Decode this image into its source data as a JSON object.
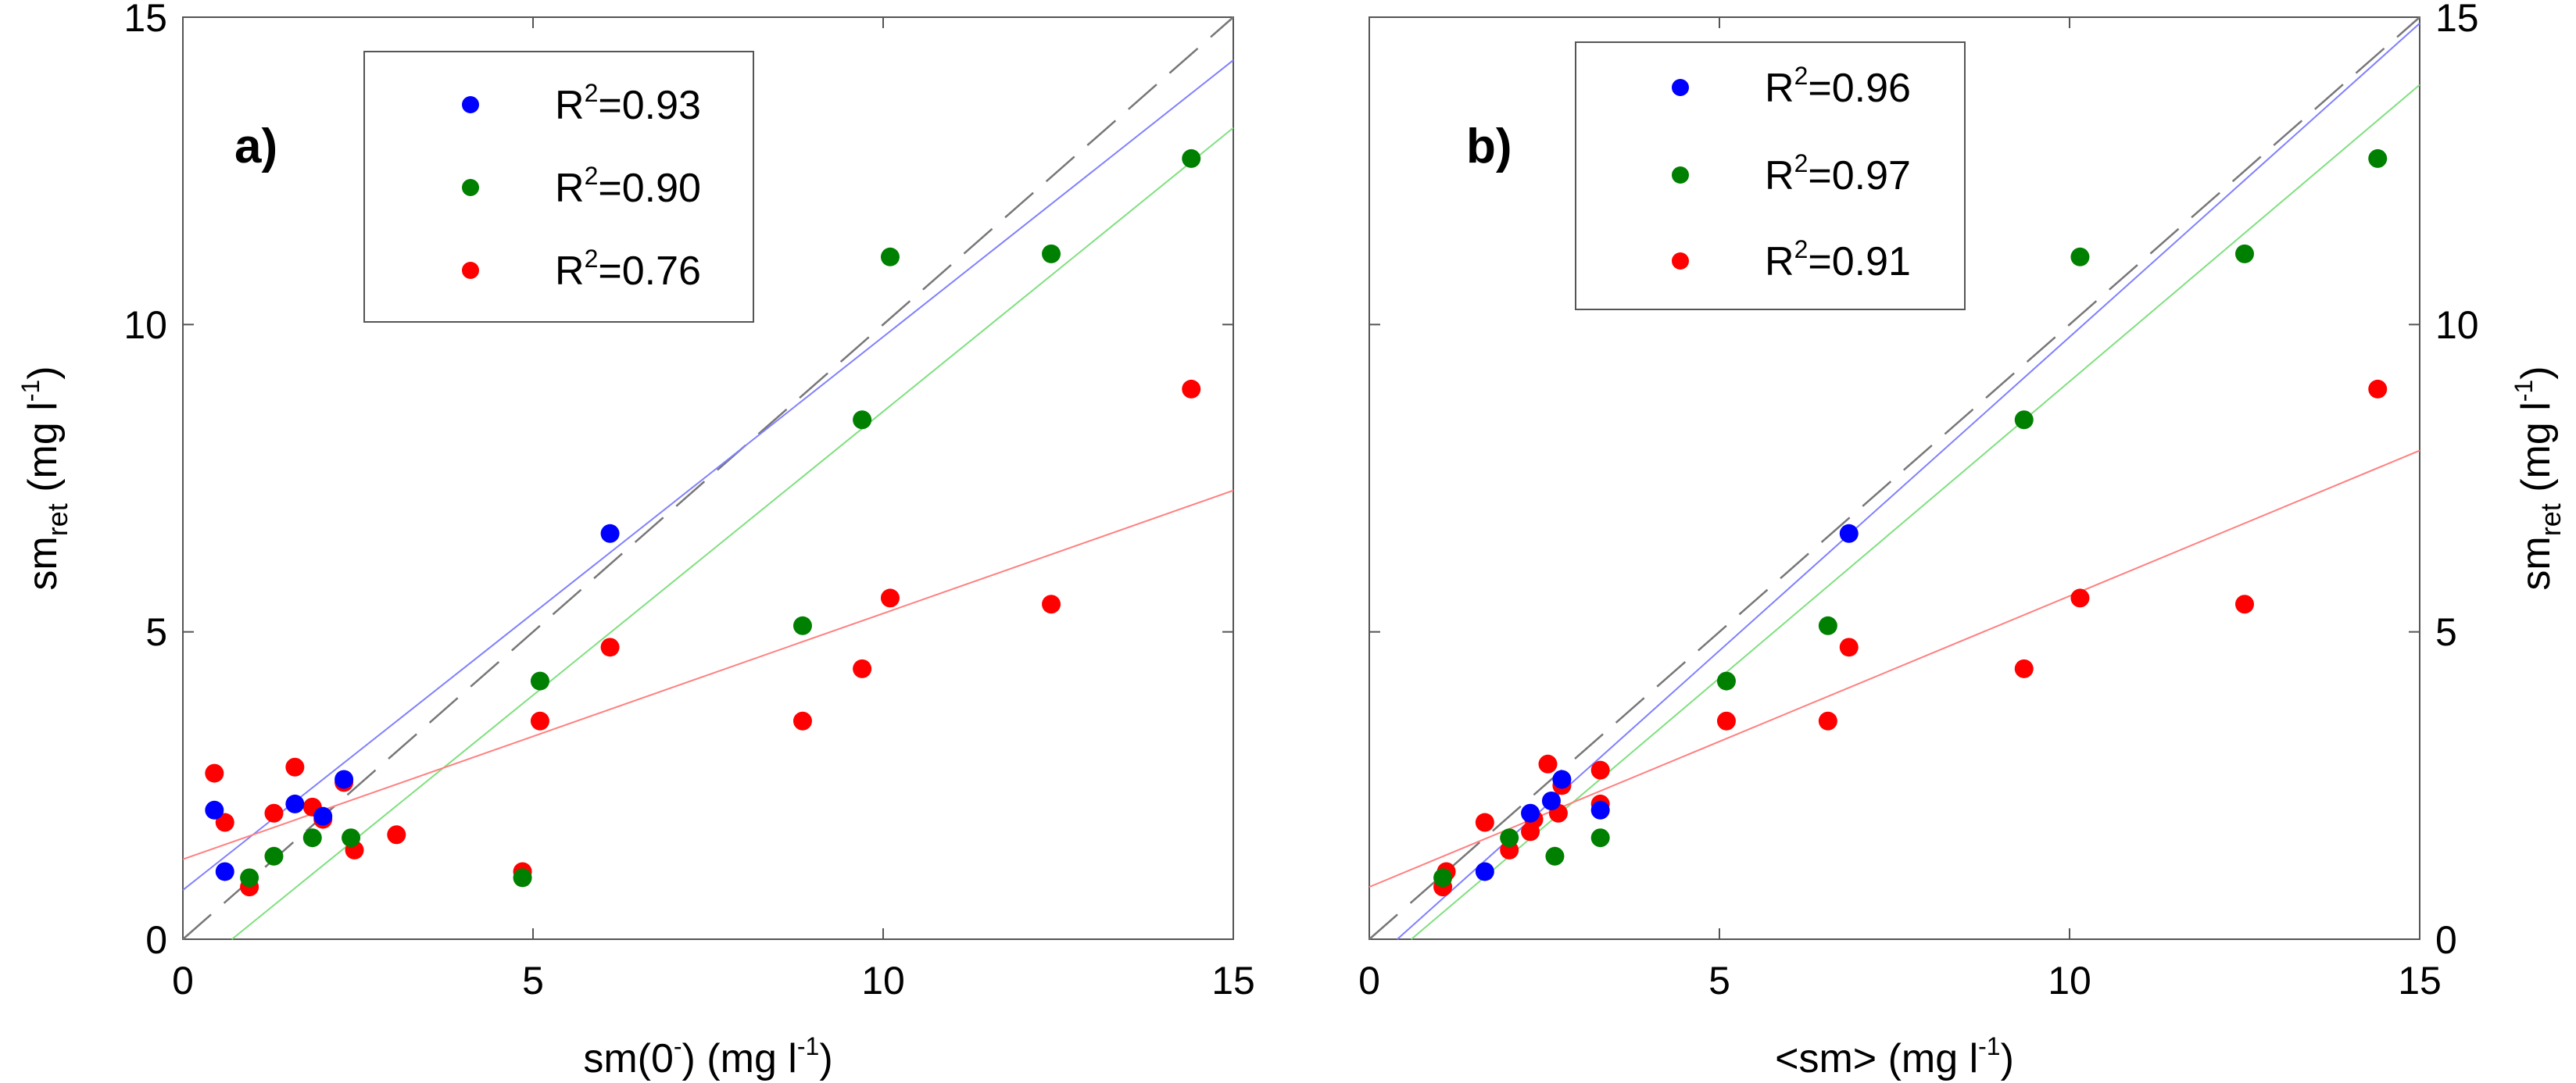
{
  "chart_data": [
    {
      "type": "scatter",
      "panel_label": "a)",
      "xlabel": {
        "main": "sm(0",
        "sup": "-",
        "mid": ") (mg l",
        "sup2": "-1",
        "end": ")"
      },
      "ylabel": {
        "main": "sm",
        "sub": "ret",
        "mid": " (mg l",
        "sup": "-1",
        "end": ")"
      },
      "ylabel_side": "left",
      "xlim": [
        0,
        15
      ],
      "ylim": [
        0,
        15
      ],
      "xticks": [
        "0",
        "5",
        "10",
        "15"
      ],
      "yticks": [
        "0",
        "5",
        "10",
        "15"
      ],
      "series": [
        {
          "name": "blue",
          "color": "#0000ff",
          "legend": {
            "label": "R",
            "sup": "2",
            "value": "=0.93"
          },
          "points": [
            [
              0.45,
              2.1
            ],
            [
              0.6,
              1.1
            ],
            [
              1.6,
              2.2
            ],
            [
              2.0,
              2.0
            ],
            [
              2.3,
              2.6
            ],
            [
              6.1,
              6.6
            ]
          ],
          "fit": [
            [
              0,
              0.8
            ],
            [
              15,
              14.3
            ]
          ]
        },
        {
          "name": "green",
          "color": "#008000",
          "legend": {
            "label": "R",
            "sup": "2",
            "value": "=0.90"
          },
          "points": [
            [
              0.95,
              1.0
            ],
            [
              1.3,
              1.35
            ],
            [
              1.85,
              1.65
            ],
            [
              2.4,
              1.65
            ],
            [
              4.85,
              1.0
            ],
            [
              5.1,
              4.2
            ],
            [
              8.85,
              5.1
            ],
            [
              9.7,
              8.45
            ],
            [
              10.1,
              11.1
            ],
            [
              12.4,
              11.15
            ],
            [
              14.4,
              12.7
            ]
          ],
          "fit": [
            [
              0.7,
              0
            ],
            [
              15,
              13.2
            ]
          ]
        },
        {
          "name": "red",
          "color": "#ff0000",
          "legend": {
            "label": "R",
            "sup": "2",
            "value": "=0.76"
          },
          "points": [
            [
              0.45,
              2.7
            ],
            [
              0.6,
              1.9
            ],
            [
              0.95,
              0.85
            ],
            [
              1.3,
              2.05
            ],
            [
              1.6,
              2.8
            ],
            [
              1.85,
              2.15
            ],
            [
              2.0,
              1.95
            ],
            [
              2.3,
              2.55
            ],
            [
              2.45,
              1.45
            ],
            [
              3.05,
              1.7
            ],
            [
              4.85,
              1.1
            ],
            [
              5.1,
              3.55
            ],
            [
              6.1,
              4.75
            ],
            [
              8.85,
              3.55
            ],
            [
              9.7,
              4.4
            ],
            [
              10.1,
              5.55
            ],
            [
              12.4,
              5.45
            ],
            [
              14.4,
              8.95
            ]
          ],
          "fit": [
            [
              0,
              1.3
            ],
            [
              15,
              7.3
            ]
          ]
        }
      ],
      "one_to_one_line": [
        [
          0,
          0
        ],
        [
          15,
          15
        ]
      ]
    },
    {
      "type": "scatter",
      "panel_label": "b)",
      "xlabel": {
        "main": "<sm> (mg l",
        "sup": "-1",
        "end": ")"
      },
      "ylabel": {
        "main": "sm",
        "sub": "ret",
        "mid": " (mg l",
        "sup": "-1",
        "end": ")"
      },
      "ylabel_side": "right",
      "xlim": [
        0,
        15
      ],
      "ylim": [
        0,
        15
      ],
      "xticks": [
        "0",
        "5",
        "10",
        "15"
      ],
      "yticks": [
        "0",
        "5",
        "10",
        "15"
      ],
      "series": [
        {
          "name": "blue",
          "color": "#0000ff",
          "legend": {
            "label": "R",
            "sup": "2",
            "value": "=0.96"
          },
          "points": [
            [
              1.65,
              1.1
            ],
            [
              2.3,
              2.05
            ],
            [
              2.6,
              2.25
            ],
            [
              2.75,
              2.6
            ],
            [
              3.3,
              2.1
            ],
            [
              6.85,
              6.6
            ]
          ],
          "fit": [
            [
              0.4,
              0
            ],
            [
              15,
              14.9
            ]
          ]
        },
        {
          "name": "green",
          "color": "#008000",
          "legend": {
            "label": "R",
            "sup": "2",
            "value": "=0.97"
          },
          "points": [
            [
              1.05,
              1.0
            ],
            [
              2.0,
              1.65
            ],
            [
              2.65,
              1.35
            ],
            [
              3.3,
              1.65
            ],
            [
              5.1,
              4.2
            ],
            [
              6.55,
              5.1
            ],
            [
              9.35,
              8.45
            ],
            [
              10.15,
              11.1
            ],
            [
              12.5,
              11.15
            ],
            [
              14.4,
              12.7
            ]
          ],
          "fit": [
            [
              0.6,
              0
            ],
            [
              15,
              13.9
            ]
          ]
        },
        {
          "name": "red",
          "color": "#ff0000",
          "legend": {
            "label": "R",
            "sup": "2",
            "value": "=0.91"
          },
          "points": [
            [
              1.05,
              0.85
            ],
            [
              1.1,
              1.1
            ],
            [
              1.65,
              1.9
            ],
            [
              2.0,
              1.45
            ],
            [
              2.3,
              1.75
            ],
            [
              2.35,
              1.95
            ],
            [
              2.55,
              2.85
            ],
            [
              2.7,
              2.05
            ],
            [
              2.75,
              2.5
            ],
            [
              3.3,
              2.2
            ],
            [
              3.3,
              2.75
            ],
            [
              5.1,
              3.55
            ],
            [
              6.55,
              3.55
            ],
            [
              6.85,
              4.75
            ],
            [
              9.35,
              4.4
            ],
            [
              10.15,
              5.55
            ],
            [
              12.5,
              5.45
            ],
            [
              14.4,
              8.95
            ]
          ],
          "fit": [
            [
              0,
              0.85
            ],
            [
              15,
              7.95
            ]
          ]
        }
      ],
      "one_to_one_line": [
        [
          0,
          0
        ],
        [
          15,
          15
        ]
      ]
    }
  ]
}
